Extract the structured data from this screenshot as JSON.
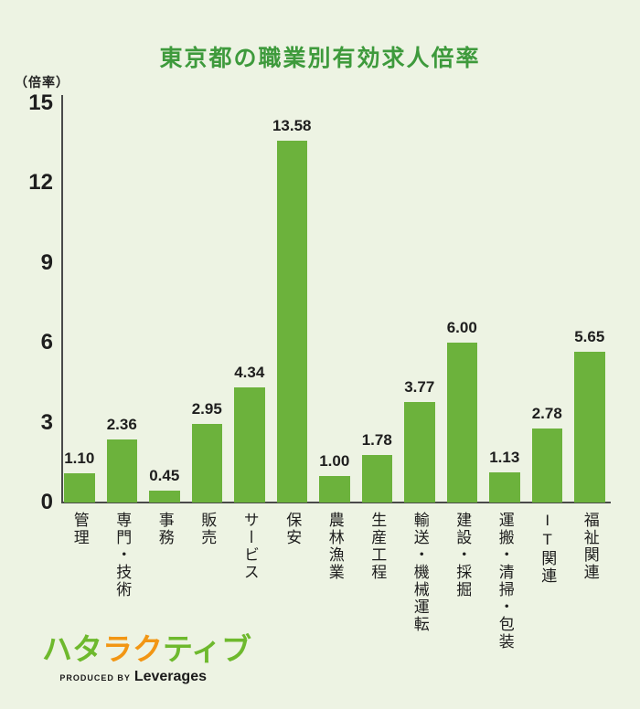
{
  "page": {
    "background_color": "#edf3e3"
  },
  "title": {
    "text": "東京都の職業別有効求人倍率",
    "color": "#3e9a3c"
  },
  "y_axis": {
    "unit_label": "（倍率）"
  },
  "chart_data": {
    "type": "bar",
    "title": "東京都の職業別有効求人倍率",
    "categories": [
      "管理",
      "専門・技術",
      "事務",
      "販売",
      "サービス",
      "保安",
      "農林漁業",
      "生産工程",
      "輸送・機械運転",
      "建設・採掘",
      "運搬・清掃・包装",
      "IT関連",
      "福祉関連"
    ],
    "values": [
      1.1,
      2.36,
      0.45,
      2.95,
      4.34,
      13.58,
      1.0,
      1.78,
      3.77,
      6.0,
      1.13,
      2.78,
      5.65
    ],
    "value_labels": [
      "1.10",
      "2.36",
      "0.45",
      "2.95",
      "4.34",
      "13.58",
      "1.00",
      "1.78",
      "3.77",
      "6.00",
      "1.13",
      "2.78",
      "5.65"
    ],
    "xlabel": "",
    "ylabel": "（倍率）",
    "ylim": [
      0,
      15
    ],
    "yticks": [
      0,
      3,
      6,
      9,
      12,
      15
    ],
    "bar_color": "#6cb23c",
    "grid": false,
    "legend_position": "none"
  },
  "logo": {
    "wordmark": "ハタラクティブ",
    "chars": [
      {
        "char": "ハ",
        "color": "#6eb92d"
      },
      {
        "char": "タ",
        "color": "#6eb92d"
      },
      {
        "char": "ラ",
        "color": "#f29614"
      },
      {
        "char": "ク",
        "color": "#f29614"
      },
      {
        "char": "テ",
        "color": "#6eb92d"
      },
      {
        "char": "ィ",
        "color": "#6eb92d"
      },
      {
        "char": "ブ",
        "color": "#6eb92d"
      }
    ],
    "produced_by": "PRODUCED BY",
    "company": "Leverages"
  }
}
